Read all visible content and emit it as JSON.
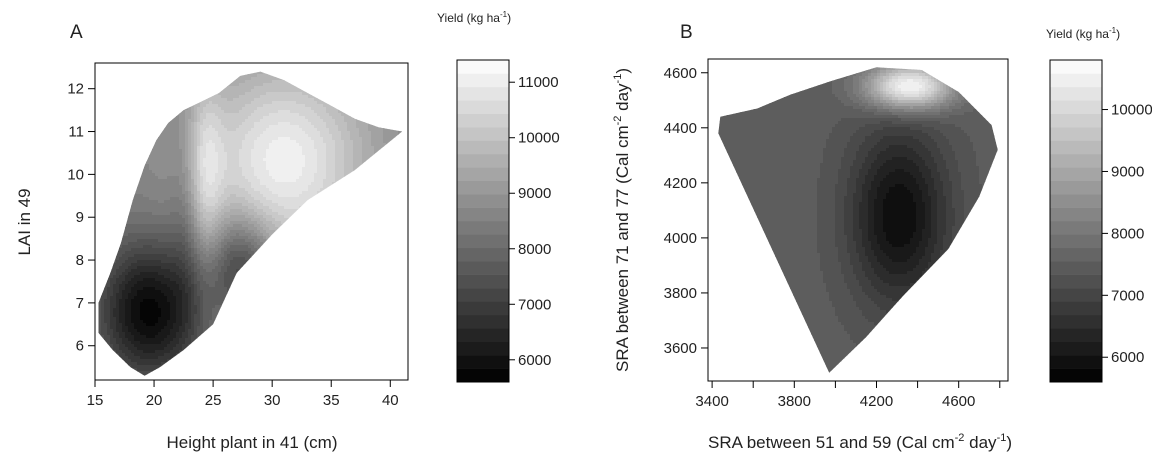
{
  "chart_data": [
    {
      "type": "heatmap",
      "panel_label": "A",
      "xlabel": "Height plant in 41 (cm)",
      "ylabel": "LAI in 49",
      "colorbar_title": {
        "main": "Yield (kg ha",
        "sup": "-1",
        "close": ")"
      },
      "xlim": [
        15,
        41.5
      ],
      "ylim": [
        5.2,
        12.6
      ],
      "x_ticks": [
        15,
        20,
        25,
        30,
        35,
        40
      ],
      "y_ticks": [
        6,
        7,
        8,
        9,
        10,
        11,
        12
      ],
      "zlim": [
        5600,
        11400
      ],
      "colorbar_ticks": [
        6000,
        7000,
        8000,
        9000,
        10000,
        11000
      ],
      "colormap": {
        "low": "#000000",
        "high": "#ffffff"
      },
      "region": [
        [
          15.3,
          6.3
        ],
        [
          15.3,
          7.0
        ],
        [
          16.3,
          7.7
        ],
        [
          17.2,
          8.4
        ],
        [
          18.2,
          9.4
        ],
        [
          19.2,
          10.2
        ],
        [
          20.2,
          10.8
        ],
        [
          21.2,
          11.2
        ],
        [
          22.5,
          11.5
        ],
        [
          24.0,
          11.7
        ],
        [
          25.5,
          11.9
        ],
        [
          27.3,
          12.3
        ],
        [
          29.0,
          12.4
        ],
        [
          31.0,
          12.2
        ],
        [
          33.0,
          11.9
        ],
        [
          35.0,
          11.6
        ],
        [
          37.0,
          11.3
        ],
        [
          39.0,
          11.1
        ],
        [
          41.0,
          11.0
        ],
        [
          37.0,
          10.1
        ],
        [
          33.0,
          9.4
        ],
        [
          30.0,
          8.6
        ],
        [
          27.0,
          7.7
        ],
        [
          25.0,
          6.5
        ],
        [
          22.5,
          5.9
        ],
        [
          20.5,
          5.5
        ],
        [
          19.2,
          5.3
        ],
        [
          18.0,
          5.5
        ],
        [
          16.5,
          5.9
        ]
      ],
      "peaks": [
        {
          "x": 19.6,
          "y": 6.8,
          "z": 5700,
          "sx": 3.2,
          "sy": 1.2,
          "kind": "low"
        },
        {
          "x": 27.5,
          "y": 7.9,
          "z": 6900,
          "sx": 2.0,
          "sy": 0.8,
          "kind": "low"
        },
        {
          "x": 22.8,
          "y": 9.3,
          "z": 7800,
          "sx": 1.0,
          "sy": 1.7,
          "kind": "low"
        },
        {
          "x": 31.0,
          "y": 10.3,
          "z": 11100,
          "sx": 5.0,
          "sy": 1.6,
          "kind": "high"
        },
        {
          "x": 24.2,
          "y": 10.0,
          "z": 10000,
          "sx": 1.2,
          "sy": 1.6,
          "kind": "high"
        }
      ]
    },
    {
      "type": "heatmap",
      "panel_label": "B",
      "xlabel": {
        "pre": "SRA between 51 and 59 (Cal cm",
        "sup1": "-2",
        "mid": " day",
        "sup2": "-1",
        "post": ")"
      },
      "ylabel": {
        "pre": "SRA between 71 and 77 (Cal cm",
        "sup1": "-2",
        "mid": " day",
        "sup2": "-1",
        "post": ")"
      },
      "colorbar_title": {
        "main": "Yield (kg ha",
        "sup": "-1",
        "close": ")"
      },
      "xlim": [
        3380,
        4840
      ],
      "ylim": [
        3480,
        4650
      ],
      "x_ticks": [
        3400,
        3600,
        3800,
        4000,
        4200,
        4400,
        4600,
        4800
      ],
      "x_tick_labels": [
        "3400",
        "",
        "3800",
        "",
        "4200",
        "",
        "4600",
        ""
      ],
      "y_ticks": [
        3600,
        3800,
        4000,
        4200,
        4400,
        4600
      ],
      "zlim": [
        5600,
        10800
      ],
      "colorbar_ticks": [
        6000,
        7000,
        8000,
        9000,
        10000
      ],
      "colormap": {
        "low": "#000000",
        "high": "#ffffff"
      },
      "region": [
        [
          3970,
          3510
        ],
        [
          3430,
          4380
        ],
        [
          3440,
          4440
        ],
        [
          3620,
          4470
        ],
        [
          3780,
          4520
        ],
        [
          3980,
          4570
        ],
        [
          4200,
          4620
        ],
        [
          4420,
          4610
        ],
        [
          4600,
          4530
        ],
        [
          4760,
          4410
        ],
        [
          4790,
          4320
        ],
        [
          4700,
          4150
        ],
        [
          4550,
          3960
        ],
        [
          4330,
          3790
        ],
        [
          4150,
          3640
        ]
      ],
      "peaks": [
        {
          "x": 4360,
          "y": 4550,
          "z": 10800,
          "sx": 150,
          "sy": 60,
          "kind": "high"
        },
        {
          "x": 4310,
          "y": 4080,
          "z": 5800,
          "sx": 170,
          "sy": 230,
          "kind": "low"
        }
      ]
    }
  ]
}
